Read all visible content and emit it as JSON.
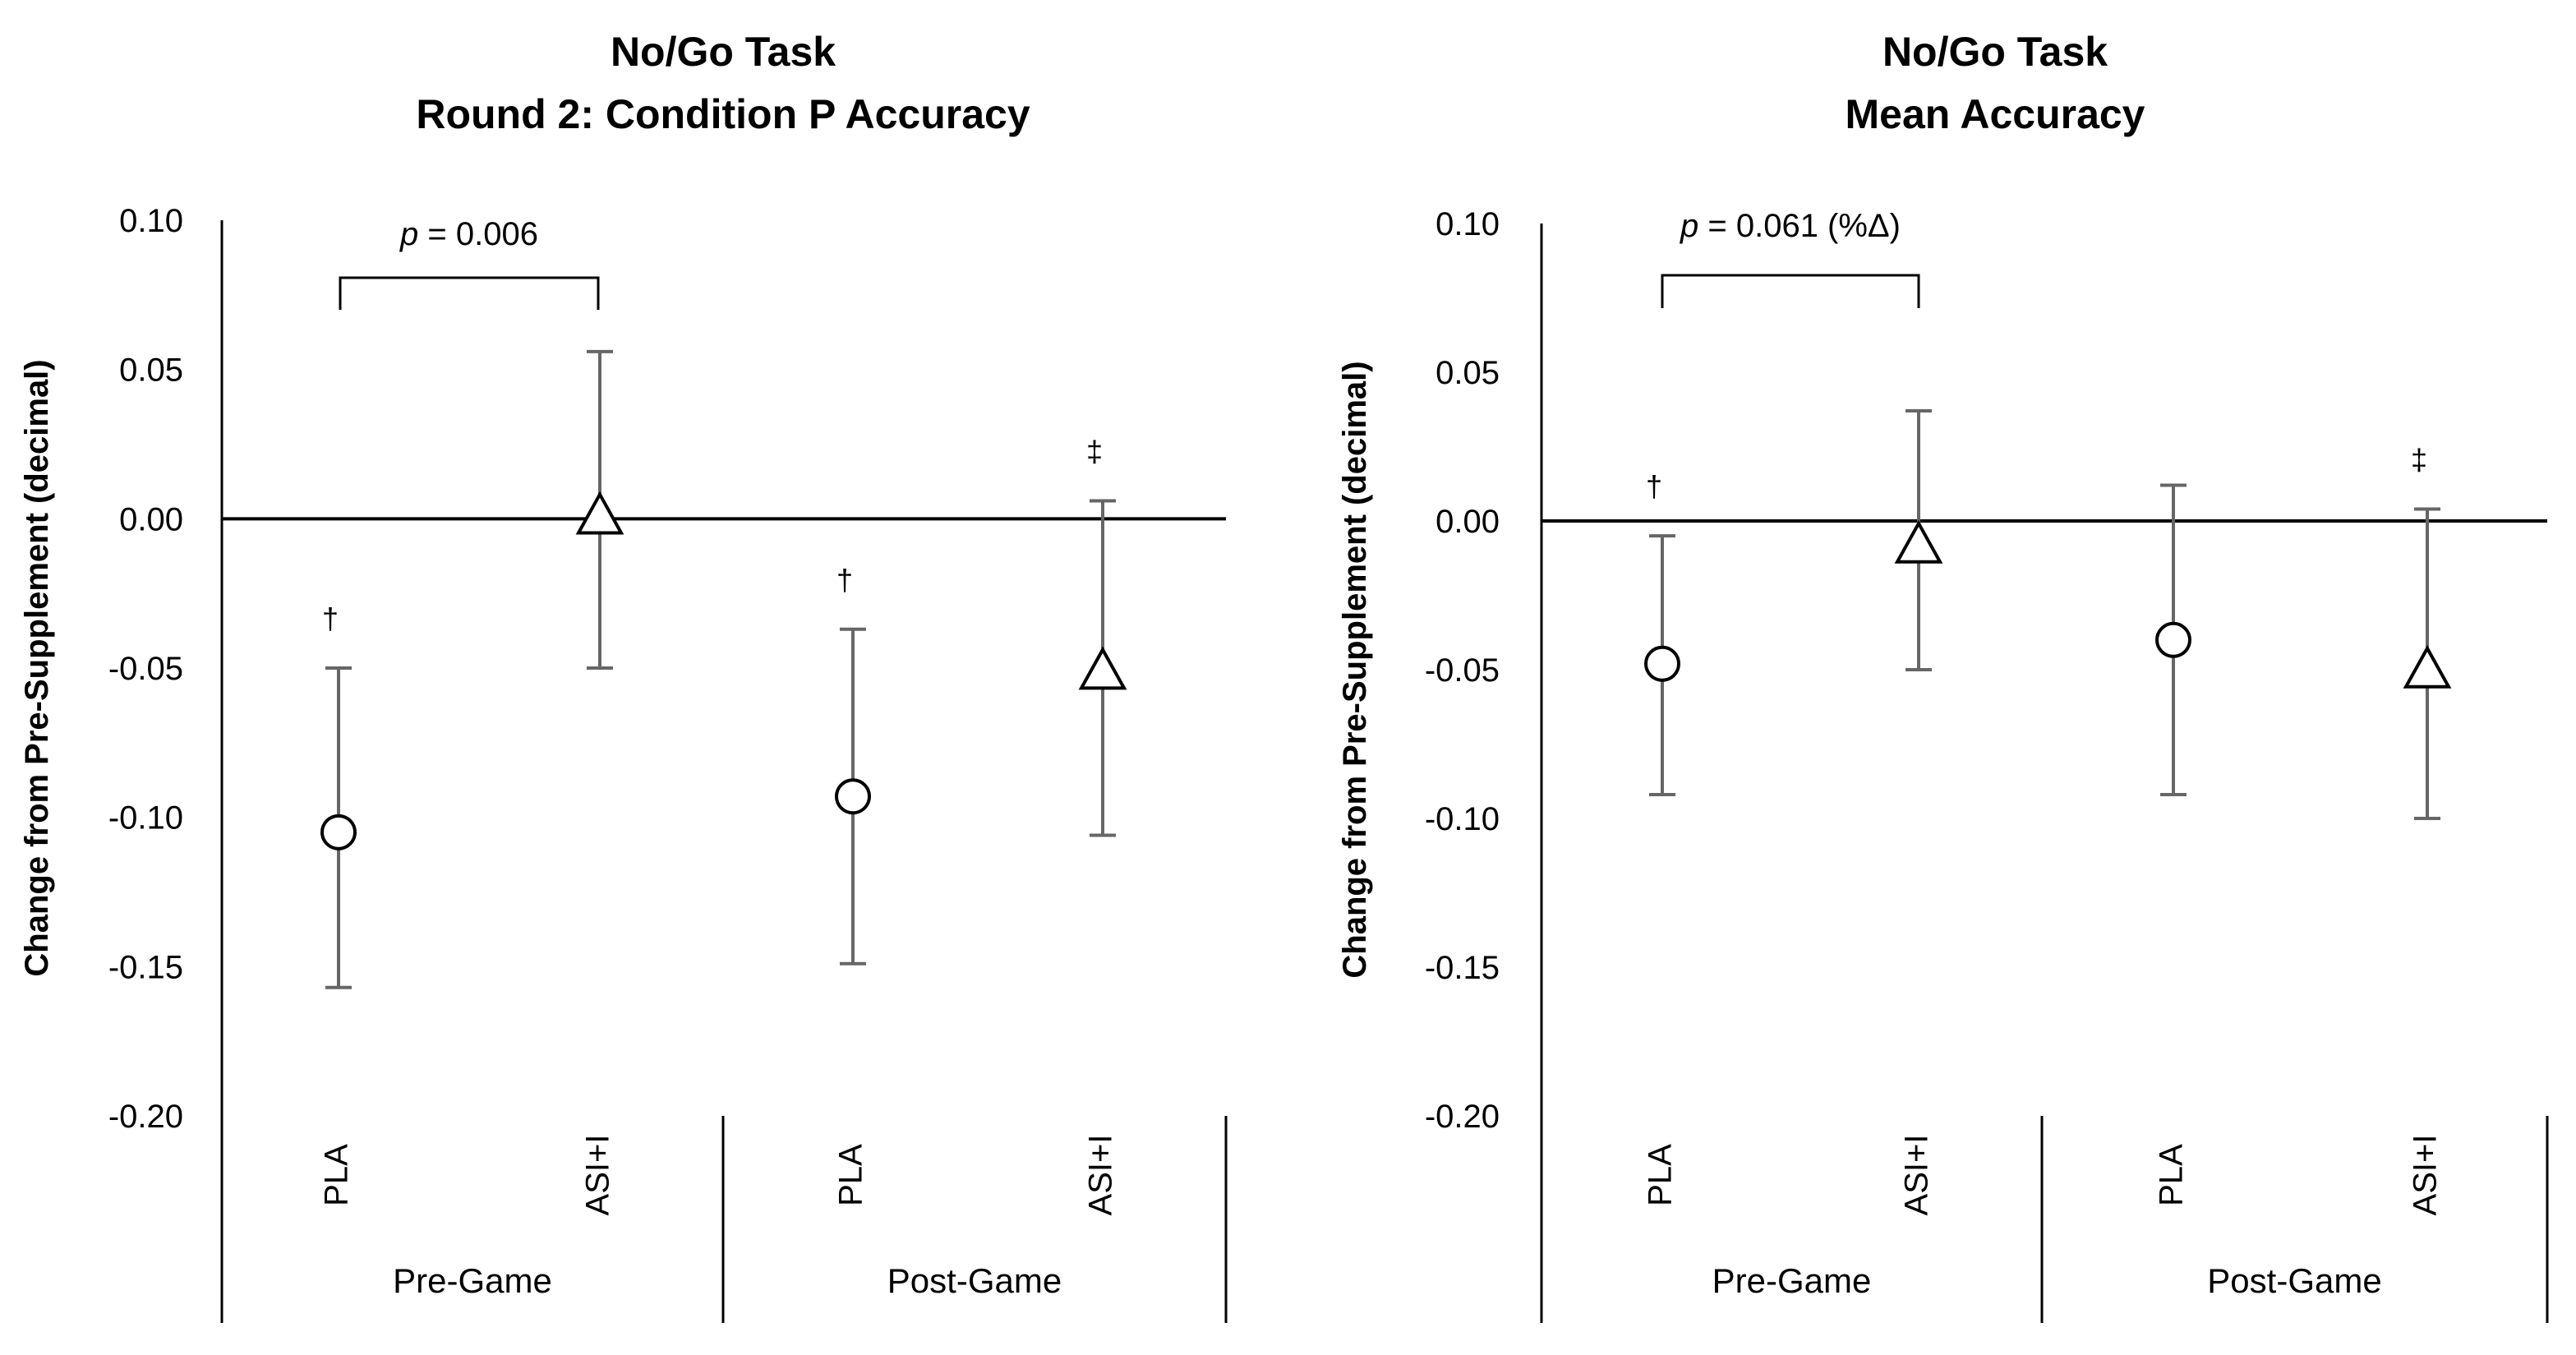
{
  "chart_data": [
    {
      "type": "scatter",
      "title": [
        "No/Go Task",
        "Round 2: Condition P Accuracy"
      ],
      "ylabel": "Change from Pre-Supplement (decimal)",
      "ylim": [
        -0.2,
        0.1
      ],
      "yticks": [
        "0.10",
        "0.05",
        "0.00",
        "-0.05",
        "-0.10",
        "-0.15",
        "-0.20"
      ],
      "groups": [
        "Pre-Game",
        "Post-Game"
      ],
      "points": [
        {
          "group": "Pre-Game",
          "label": "PLA",
          "marker": "circle",
          "mean": -0.105,
          "upper": -0.05,
          "lower": -0.157,
          "symbol": "†"
        },
        {
          "group": "Pre-Game",
          "label": "ASI+I",
          "marker": "triangle",
          "mean": 0.001,
          "upper": 0.056,
          "lower": -0.05,
          "symbol": ""
        },
        {
          "group": "Post-Game",
          "label": "PLA",
          "marker": "circle",
          "mean": -0.093,
          "upper": -0.037,
          "lower": -0.149,
          "symbol": "†"
        },
        {
          "group": "Post-Game",
          "label": "ASI+I",
          "marker": "triangle",
          "mean": -0.051,
          "upper": 0.006,
          "lower": -0.106,
          "symbol": "‡"
        }
      ],
      "bracket": {
        "text_prefix": "p",
        "text": " = 0.006",
        "from": 0,
        "to": 1
      }
    },
    {
      "type": "scatter",
      "title": [
        "No/Go Task",
        "Mean Accuracy"
      ],
      "ylabel": "Change from Pre-Supplement (decimal)",
      "ylim": [
        -0.2,
        0.1
      ],
      "yticks": [
        "0.10",
        "0.05",
        "0.00",
        "-0.05",
        "-0.10",
        "-0.15",
        "-0.20"
      ],
      "groups": [
        "Pre-Game",
        "Post-Game"
      ],
      "points": [
        {
          "group": "Pre-Game",
          "label": "PLA",
          "marker": "circle",
          "mean": -0.048,
          "upper": -0.005,
          "lower": -0.092,
          "symbol": "†"
        },
        {
          "group": "Pre-Game",
          "label": "ASI+I",
          "marker": "triangle",
          "mean": -0.008,
          "upper": 0.037,
          "lower": -0.05,
          "symbol": ""
        },
        {
          "group": "Post-Game",
          "label": "PLA",
          "marker": "circle",
          "mean": -0.04,
          "upper": 0.012,
          "lower": -0.092,
          "symbol": ""
        },
        {
          "group": "Post-Game",
          "label": "ASI+I",
          "marker": "triangle",
          "mean": -0.05,
          "upper": 0.004,
          "lower": -0.1,
          "symbol": "‡"
        }
      ],
      "bracket": {
        "text_prefix": "p",
        "text": " = 0.061 (%Δ)",
        "from": 0,
        "to": 1
      }
    }
  ]
}
